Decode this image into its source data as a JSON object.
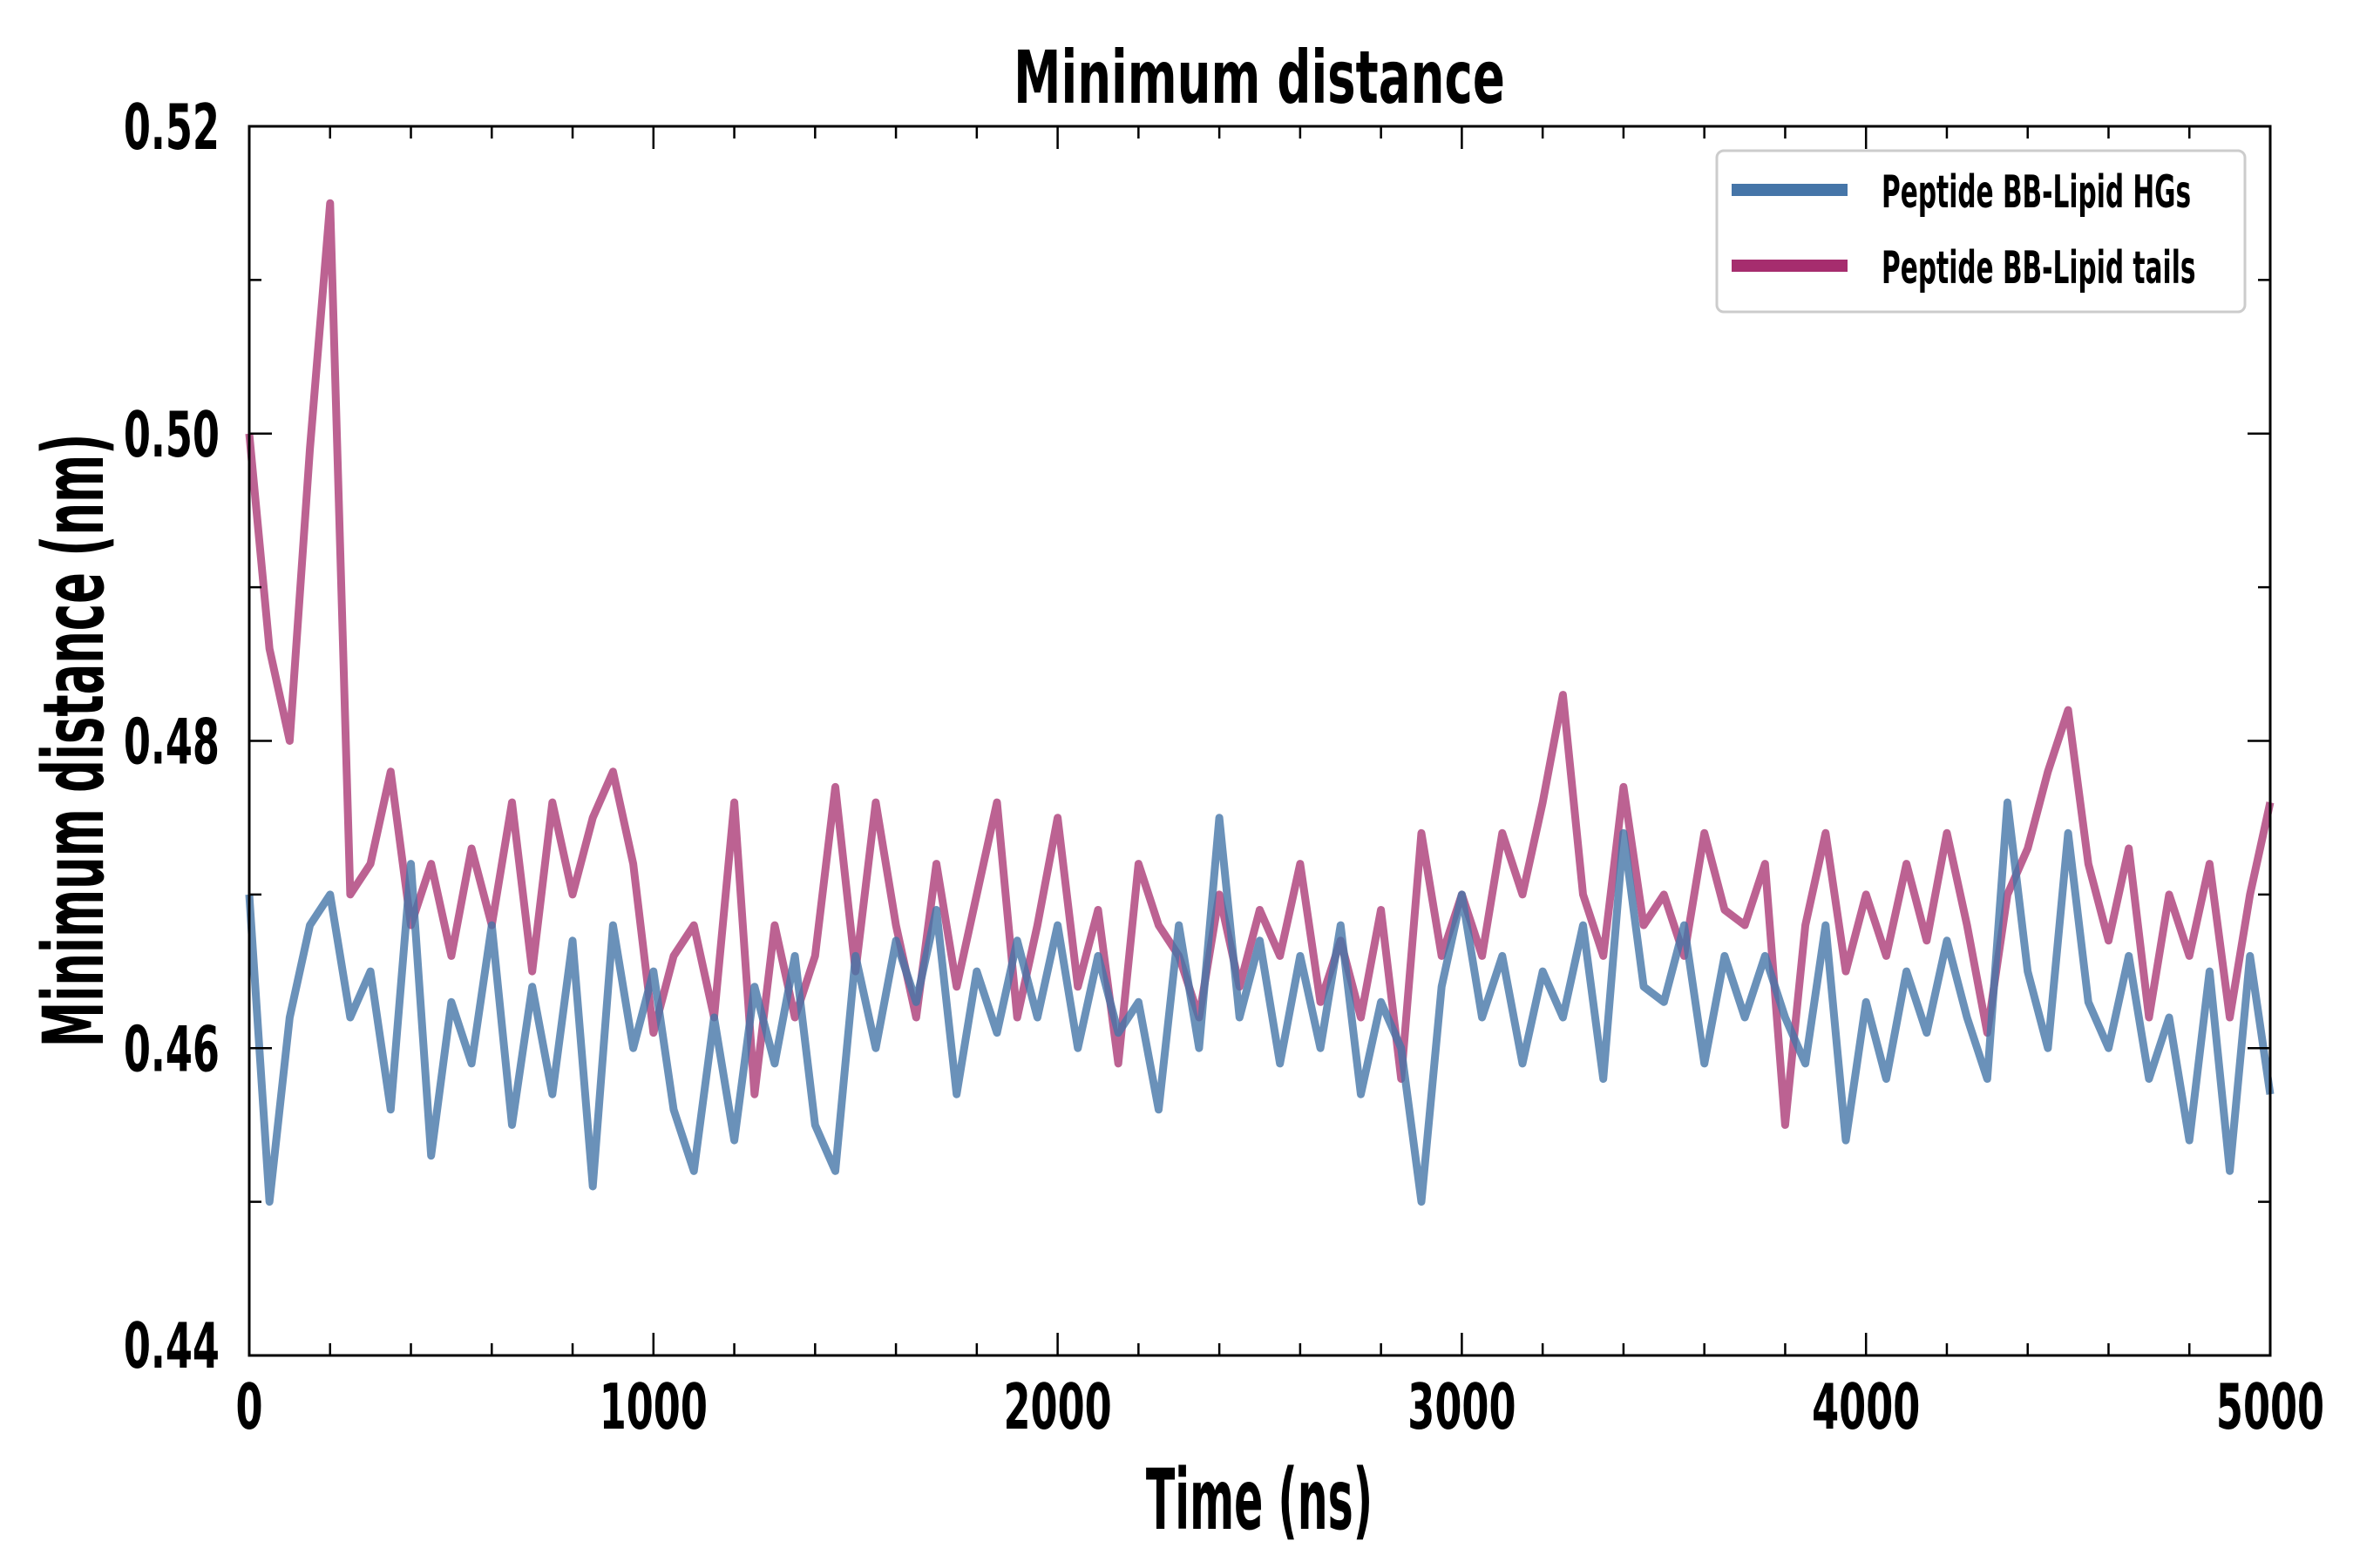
{
  "chart_data": {
    "type": "line",
    "title": "Minimum distance",
    "xlabel": "Time (ns)",
    "ylabel": "Minimum distance (nm)",
    "xlim": [
      0,
      5000
    ],
    "ylim": [
      0.44,
      0.52
    ],
    "xticks": [
      0,
      1000,
      2000,
      3000,
      4000,
      5000
    ],
    "xtick_labels": [
      "0",
      "1000",
      "2000",
      "3000",
      "4000",
      "5000"
    ],
    "yticks": [
      0.44,
      0.46,
      0.48,
      0.5,
      0.52
    ],
    "ytick_labels": [
      "0.44",
      "0.46",
      "0.48",
      "0.50",
      "0.52"
    ],
    "x_minor_step": 200,
    "y_minor_step": 0.01,
    "grid": false,
    "legend_position": "top-right",
    "x_step": 50,
    "series": [
      {
        "name": "Peptide BB-Lipid HGs",
        "color": "#4575a8",
        "values": [
          0.47,
          0.45,
          0.462,
          0.468,
          0.47,
          0.462,
          0.465,
          0.456,
          0.472,
          0.453,
          0.463,
          0.459,
          0.468,
          0.455,
          0.464,
          0.457,
          0.467,
          0.451,
          0.468,
          0.46,
          0.465,
          0.456,
          0.452,
          0.462,
          0.454,
          0.464,
          0.459,
          0.466,
          0.455,
          0.452,
          0.466,
          0.46,
          0.467,
          0.463,
          0.469,
          0.457,
          0.465,
          0.461,
          0.467,
          0.462,
          0.468,
          0.46,
          0.466,
          0.461,
          0.463,
          0.456,
          0.468,
          0.46,
          0.475,
          0.462,
          0.467,
          0.459,
          0.466,
          0.46,
          0.468,
          0.457,
          0.463,
          0.46,
          0.45,
          0.464,
          0.47,
          0.462,
          0.466,
          0.459,
          0.465,
          0.462,
          0.468,
          0.458,
          0.474,
          0.464,
          0.463,
          0.468,
          0.459,
          0.466,
          0.462,
          0.466,
          0.462,
          0.459,
          0.468,
          0.454,
          0.463,
          0.458,
          0.465,
          0.461,
          0.467,
          0.462,
          0.458,
          0.476,
          0.465,
          0.46,
          0.474,
          0.463,
          0.46,
          0.466,
          0.458,
          0.462,
          0.454,
          0.465,
          0.452,
          0.466,
          0.457
        ]
      },
      {
        "name": "Peptide BB-Lipid tails",
        "color": "#a62d6e",
        "values": [
          0.5,
          0.486,
          0.48,
          0.499,
          0.515,
          0.47,
          0.472,
          0.478,
          0.468,
          0.472,
          0.466,
          0.473,
          0.468,
          0.476,
          0.465,
          0.476,
          0.47,
          0.475,
          0.478,
          0.472,
          0.461,
          0.466,
          0.468,
          0.462,
          0.476,
          0.457,
          0.468,
          0.462,
          0.466,
          0.477,
          0.465,
          0.476,
          0.468,
          0.462,
          0.472,
          0.464,
          0.47,
          0.476,
          0.462,
          0.468,
          0.475,
          0.464,
          0.469,
          0.459,
          0.472,
          0.468,
          0.466,
          0.462,
          0.47,
          0.464,
          0.469,
          0.466,
          0.472,
          0.463,
          0.467,
          0.462,
          0.469,
          0.458,
          0.474,
          0.466,
          0.47,
          0.466,
          0.474,
          0.47,
          0.476,
          0.483,
          0.47,
          0.466,
          0.477,
          0.468,
          0.47,
          0.466,
          0.474,
          0.469,
          0.468,
          0.472,
          0.455,
          0.468,
          0.474,
          0.465,
          0.47,
          0.466,
          0.472,
          0.467,
          0.474,
          0.468,
          0.461,
          0.47,
          0.473,
          0.478,
          0.482,
          0.472,
          0.467,
          0.473,
          0.462,
          0.47,
          0.466,
          0.472,
          0.462,
          0.47,
          0.476
        ]
      }
    ]
  }
}
